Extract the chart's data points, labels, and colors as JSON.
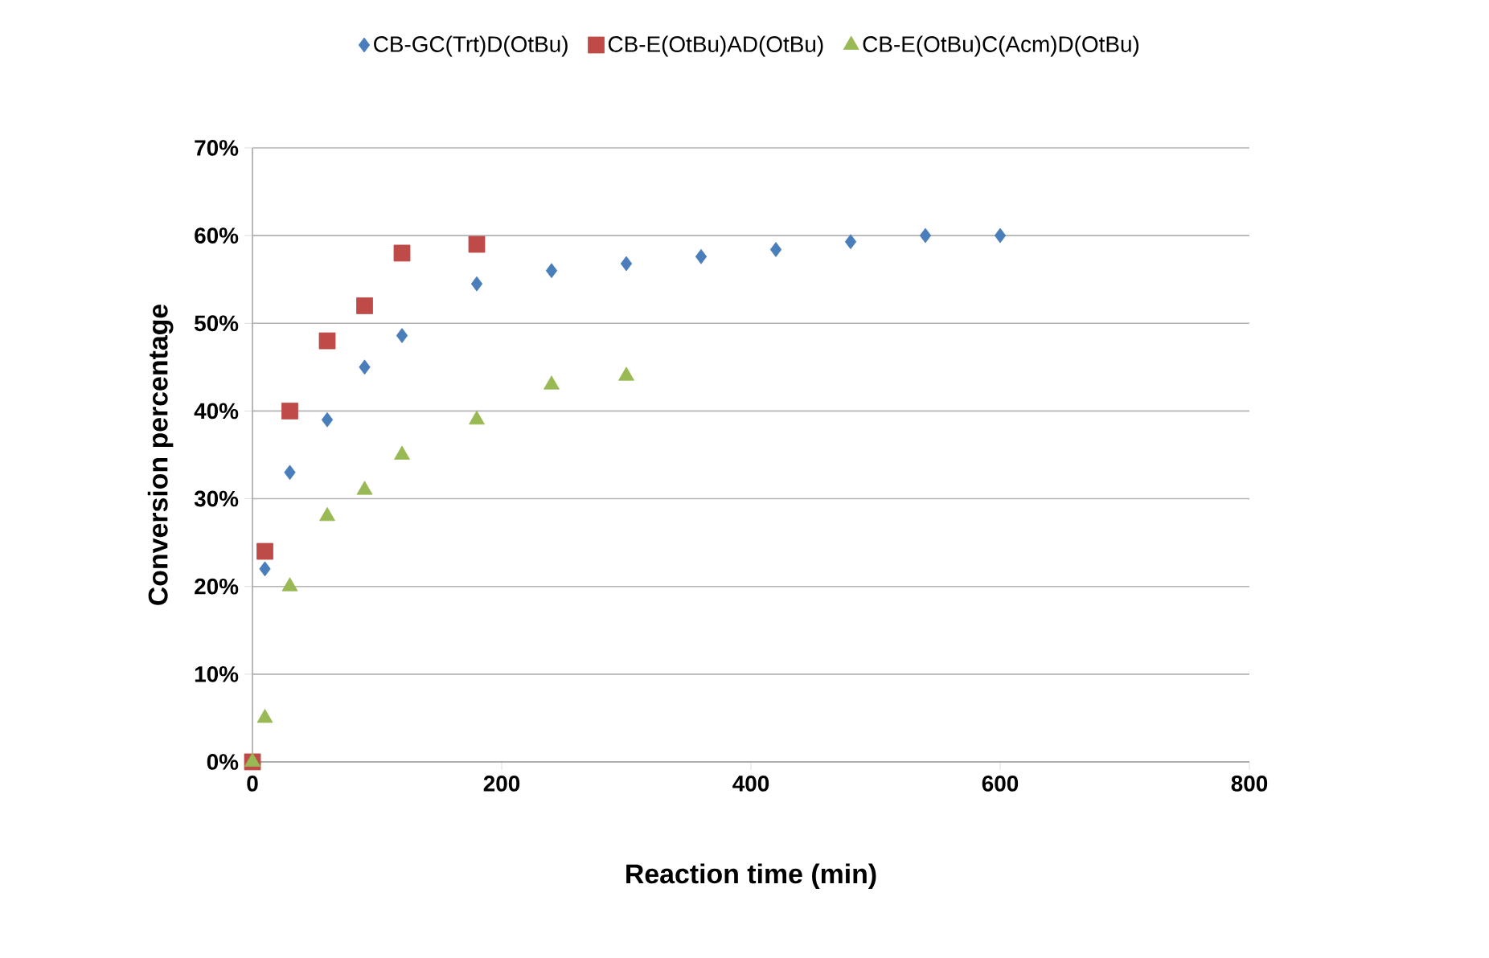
{
  "chart_data": {
    "type": "scatter",
    "xlabel": "Reaction time (min)",
    "ylabel": "Conversion percentage",
    "xlim": [
      0,
      800
    ],
    "xticks": [
      0,
      200,
      400,
      600,
      800
    ],
    "ylim": [
      0,
      70
    ],
    "yticks": [
      {
        "value": 0,
        "label": "0%"
      },
      {
        "value": 10,
        "label": "10%"
      },
      {
        "value": 20,
        "label": "20%"
      },
      {
        "value": 30,
        "label": "30%"
      },
      {
        "value": 40,
        "label": "40%"
      },
      {
        "value": 50,
        "label": "50%"
      },
      {
        "value": 60,
        "label": "60%"
      },
      {
        "value": 70,
        "label": "70%"
      }
    ],
    "grid": "y",
    "legend": "top",
    "series": [
      {
        "name": "CB-GC(Trt)D(OtBu)",
        "color": "#4a7ebb",
        "marker": "diamond",
        "x": [
          10,
          30,
          60,
          90,
          120,
          180,
          240,
          300,
          360,
          420,
          480,
          540,
          600
        ],
        "values": [
          22,
          33,
          39,
          45,
          48.6,
          54.5,
          56,
          56.8,
          57.6,
          58.4,
          59.3,
          60,
          60
        ]
      },
      {
        "name": "CB-E(OtBu)AD(OtBu)",
        "color": "#be4b48",
        "marker": "square",
        "x": [
          0,
          10,
          30,
          60,
          90,
          120,
          180
        ],
        "values": [
          0,
          24,
          40,
          48,
          52,
          58,
          59
        ]
      },
      {
        "name": "CB-E(OtBu)C(Acm)D(OtBu)",
        "color": "#98b954",
        "marker": "triangle",
        "x": [
          0,
          10,
          30,
          60,
          90,
          120,
          180,
          240,
          300
        ],
        "values": [
          0,
          5,
          20,
          28,
          31,
          35,
          39,
          43,
          44
        ]
      }
    ]
  }
}
